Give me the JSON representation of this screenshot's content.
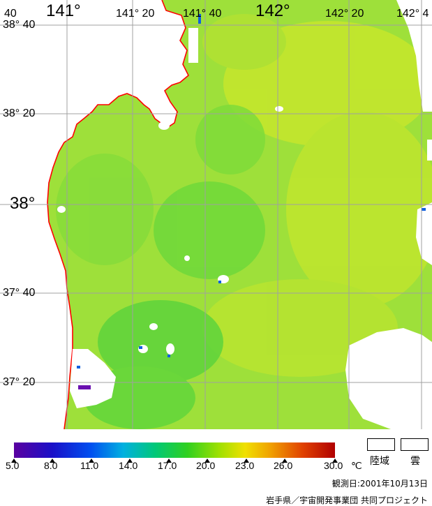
{
  "map": {
    "lon_labels": [
      "141°",
      "141° 20",
      "141° 40",
      "142°",
      "142° 20",
      "142° 4"
    ],
    "lat_labels": [
      "38° 40",
      "38° 20",
      "38°",
      "37° 40",
      "37° 20"
    ],
    "corner_label": "40",
    "colors": {
      "sea_main": "#9ee03a",
      "sea_warm": "#c8e82a",
      "sea_cool": "#5fd83a",
      "land": "#ffffff",
      "coast": "#ff0000",
      "grid": "#a0a0a0",
      "cloud": "#ffffff"
    }
  },
  "legend": {
    "ticks": [
      "5.0",
      "8.0",
      "11.0",
      "14.0",
      "17.0",
      "20.0",
      "23.0",
      "26.0",
      "30.0"
    ],
    "unit": "℃",
    "land_label": "陸域",
    "cloud_label": "雲",
    "observed": "観測日:2001年10月13日",
    "credit": "岩手県／宇宙開発事業団 共同プロジェクト"
  }
}
